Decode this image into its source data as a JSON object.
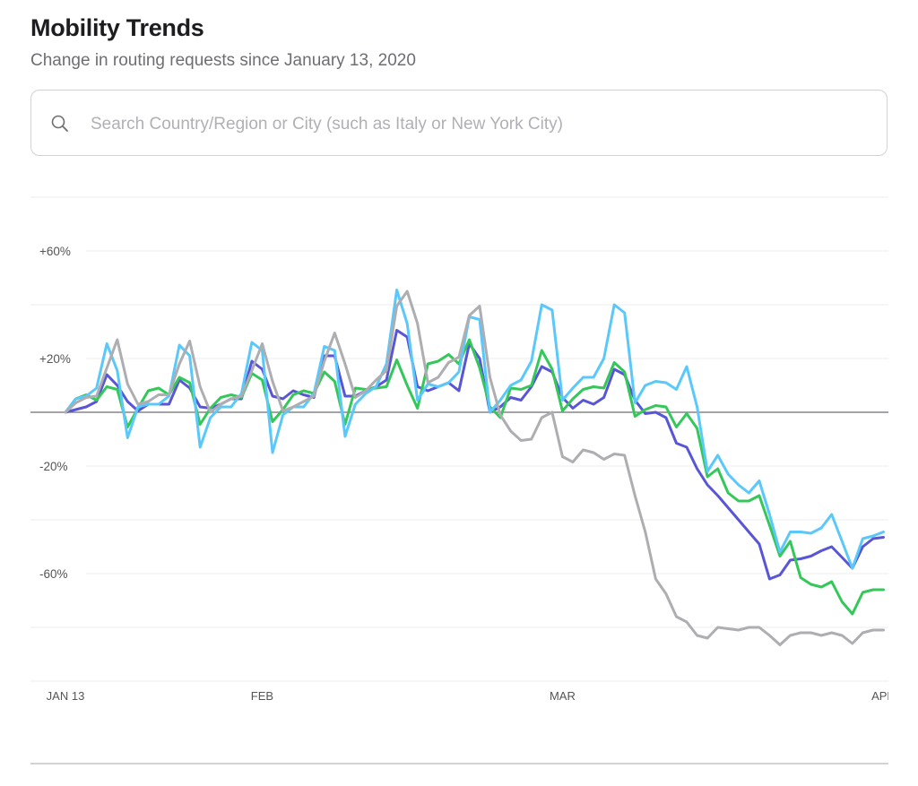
{
  "header": {
    "title": "Mobility Trends",
    "subtitle": "Change in routing requests since January 13, 2020"
  },
  "search": {
    "placeholder": "Search Country/Region or City (such as Italy or New York City)",
    "value": "",
    "icon": "search-icon"
  },
  "chart_data": {
    "type": "line",
    "title": "",
    "xlabel": "",
    "ylabel": "",
    "ylim": [
      -100,
      80
    ],
    "yticks": [
      -100,
      -80,
      -60,
      -40,
      -20,
      0,
      20,
      40,
      60,
      80
    ],
    "ytick_labels": [
      {
        "value": 60,
        "label": "+60%"
      },
      {
        "value": 20,
        "label": "+20%"
      },
      {
        "value": -20,
        "label": "-20%"
      },
      {
        "value": -60,
        "label": "-60%"
      }
    ],
    "xtick_labels": [
      {
        "date": "2020-01-13",
        "label": "JAN 13"
      },
      {
        "date": "2020-02-01",
        "label": "FEB"
      },
      {
        "date": "2020-03-01",
        "label": "MAR"
      },
      {
        "date": "2020-04-01",
        "label": "APR"
      }
    ],
    "grid": true,
    "baseline": 0,
    "x": [
      "2020-01-13",
      "2020-01-14",
      "2020-01-15",
      "2020-01-16",
      "2020-01-17",
      "2020-01-18",
      "2020-01-19",
      "2020-01-20",
      "2020-01-21",
      "2020-01-22",
      "2020-01-23",
      "2020-01-24",
      "2020-01-25",
      "2020-01-26",
      "2020-01-27",
      "2020-01-28",
      "2020-01-29",
      "2020-01-30",
      "2020-01-31",
      "2020-02-01",
      "2020-02-02",
      "2020-02-03",
      "2020-02-04",
      "2020-02-05",
      "2020-02-06",
      "2020-02-07",
      "2020-02-08",
      "2020-02-09",
      "2020-02-10",
      "2020-02-11",
      "2020-02-12",
      "2020-02-13",
      "2020-02-14",
      "2020-02-15",
      "2020-02-16",
      "2020-02-17",
      "2020-02-18",
      "2020-02-19",
      "2020-02-20",
      "2020-02-21",
      "2020-02-22",
      "2020-02-23",
      "2020-02-24",
      "2020-02-25",
      "2020-02-26",
      "2020-02-27",
      "2020-02-28",
      "2020-02-29",
      "2020-03-01",
      "2020-03-02",
      "2020-03-03",
      "2020-03-04",
      "2020-03-05",
      "2020-03-06",
      "2020-03-07",
      "2020-03-08",
      "2020-03-09",
      "2020-03-10",
      "2020-03-11",
      "2020-03-12",
      "2020-03-13",
      "2020-03-14",
      "2020-03-15",
      "2020-03-16",
      "2020-03-17",
      "2020-03-18",
      "2020-03-19",
      "2020-03-20",
      "2020-03-21",
      "2020-03-22",
      "2020-03-23",
      "2020-03-24",
      "2020-03-25",
      "2020-03-26",
      "2020-03-27",
      "2020-03-28",
      "2020-03-29",
      "2020-03-30",
      "2020-03-31",
      "2020-04-01"
    ],
    "series": [
      {
        "color": "#5856d6",
        "values": [
          0,
          1,
          2,
          4,
          14,
          10,
          4,
          0.5,
          3,
          3,
          3,
          12,
          9,
          2,
          1.5,
          3,
          5,
          5,
          19,
          16,
          6,
          5,
          8,
          6.5,
          5.5,
          21,
          21,
          6,
          6,
          8,
          9.5,
          12,
          30.5,
          28,
          9.5,
          8,
          9.5,
          11,
          8,
          25.5,
          20,
          0,
          2,
          5.5,
          4.5,
          9.5,
          17,
          15,
          5.5,
          1.5,
          4.5,
          3,
          5.5,
          16,
          14,
          4.5,
          -0.5,
          0,
          -2,
          -11.5,
          -13,
          -21,
          -27,
          -31,
          -35.5,
          -40,
          -44.5,
          -49,
          -62,
          -60.5,
          -55,
          -54.5,
          -53.5,
          -51.5,
          -50,
          -54,
          -58,
          -50,
          -47,
          -46.5
        ]
      },
      {
        "color": "#34c759",
        "values": [
          0,
          5,
          6.5,
          4.5,
          9.5,
          8.5,
          -5.5,
          1.5,
          8,
          9,
          6.5,
          13,
          11,
          -4.5,
          1.5,
          5.5,
          6.5,
          5.5,
          14.5,
          12,
          -3.5,
          1,
          6.5,
          8,
          7,
          15,
          11.5,
          -4.5,
          9,
          8.5,
          9,
          9.5,
          19.5,
          10,
          1.5,
          18,
          19,
          21.5,
          18,
          27,
          16.5,
          2,
          -2,
          9,
          8.5,
          10,
          23,
          16,
          0.5,
          5,
          8.5,
          9.5,
          9,
          18.5,
          15,
          -1.5,
          1,
          2.5,
          2,
          -5.5,
          -0.5,
          -6,
          -24,
          -21,
          -30,
          -33,
          -33,
          -31,
          -42,
          -53.5,
          -48,
          -61.5,
          -64,
          -65,
          -63,
          -70.5,
          -75,
          -67,
          -66,
          -66
        ]
      },
      {
        "color": "#5ac8fa",
        "values": [
          0,
          5,
          6,
          9,
          25.5,
          15.5,
          -9.5,
          2,
          3,
          3,
          6,
          25,
          21,
          -13,
          -2,
          2,
          2,
          7,
          26,
          23,
          -15,
          -1,
          2,
          2,
          7,
          24.5,
          23,
          -9,
          3,
          7,
          9.5,
          18,
          45.5,
          33,
          4.5,
          10.5,
          9.5,
          11,
          15,
          35.5,
          34.5,
          0,
          4.5,
          10,
          12,
          19,
          40,
          38,
          4.5,
          9,
          13,
          13,
          20,
          40,
          37,
          3.5,
          10,
          11.5,
          11,
          8.5,
          17,
          2,
          -22,
          -16,
          -23,
          -27,
          -30,
          -25.5,
          -38,
          -52,
          -44.5,
          -44.5,
          -45,
          -43,
          -38,
          -48,
          -58,
          -47,
          -46,
          -44.5
        ]
      },
      {
        "color": "#aeaeb2",
        "values": [
          0,
          3.5,
          5.5,
          6,
          16.5,
          27,
          10.5,
          3,
          4,
          6.5,
          6.5,
          18,
          26.5,
          9.5,
          0,
          3,
          5,
          6,
          15.5,
          25.5,
          11.5,
          0.5,
          2,
          4,
          6,
          19,
          29.5,
          18,
          5.5,
          8,
          12,
          15.5,
          39.5,
          45,
          33,
          11,
          13,
          18.5,
          20.5,
          36,
          39.5,
          13,
          -1,
          -7,
          -10.5,
          -10,
          -2,
          0,
          -16.5,
          -18.5,
          -14,
          -15,
          -17.5,
          -15.5,
          -16,
          -31,
          -44.5,
          -62,
          -67.5,
          -76,
          -78,
          -83,
          -84,
          -80,
          -80.5,
          -81,
          -80,
          -80,
          -83,
          -86.5,
          -83,
          -82,
          -82,
          -83,
          -82,
          -83,
          -86,
          -82,
          -81,
          -81
        ]
      }
    ]
  }
}
